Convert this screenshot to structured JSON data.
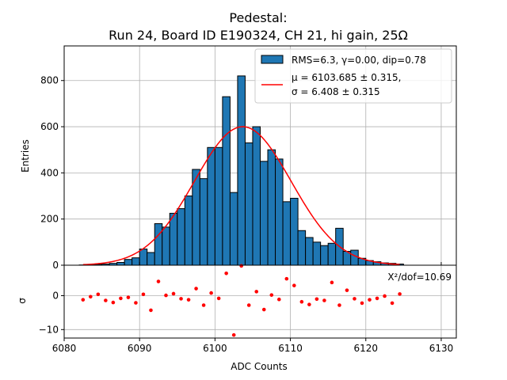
{
  "title_line1": "Pedestal:",
  "title_line2": "Run 24, Board ID E190324, CH 21, hi gain, 25Ω",
  "colors": {
    "bar": "#1f77b4",
    "fit": "#ff0000",
    "residual": "#ff0000",
    "grid": "#b0b0b0"
  },
  "chart_data": [
    {
      "type": "bar",
      "ylabel": "Entries",
      "xlim": [
        6080,
        6132
      ],
      "ylim": [
        0,
        950
      ],
      "bin_width": 1,
      "grid": true,
      "x_ticks": [
        6080,
        6090,
        6100,
        6110,
        6120,
        6130
      ],
      "y_ticks": [
        0,
        200,
        400,
        600,
        800
      ],
      "y_tick_labels": [
        "0",
        "200",
        "400",
        "600",
        "800"
      ],
      "bins_left_edge": [
        6082,
        6083,
        6084,
        6085,
        6086,
        6087,
        6088,
        6089,
        6090,
        6091,
        6092,
        6093,
        6094,
        6095,
        6096,
        6097,
        6098,
        6099,
        6100,
        6101,
        6102,
        6103,
        6104,
        6105,
        6106,
        6107,
        6108,
        6109,
        6110,
        6111,
        6112,
        6113,
        6114,
        6115,
        6116,
        6117,
        6118,
        6119,
        6120,
        6121,
        6122,
        6123,
        6124
      ],
      "values": [
        1,
        2,
        4,
        5,
        8,
        12,
        25,
        32,
        70,
        55,
        180,
        165,
        225,
        245,
        300,
        415,
        375,
        510,
        510,
        730,
        315,
        820,
        530,
        600,
        450,
        500,
        460,
        275,
        290,
        150,
        120,
        100,
        85,
        95,
        160,
        60,
        65,
        30,
        20,
        15,
        10,
        8,
        5
      ],
      "legend_placement": "top-right",
      "legend": [
        {
          "label": "RMS=6.3, γ=0.00, dip=0.78",
          "marker": "patch"
        },
        {
          "label_lines": [
            "μ = 6103.685 ± 0.315,",
            "σ = 6.408 ± 0.315"
          ],
          "marker": "line"
        }
      ],
      "fit": {
        "type": "line",
        "mu": 6103.685,
        "sigma": 6.408,
        "amplitude": 600,
        "x_range": [
          6082.5,
          6124.5
        ]
      }
    },
    {
      "type": "scatter",
      "xlabel": "ADC Counts",
      "ylabel": "σ",
      "xlim": [
        6080,
        6132
      ],
      "ylim": [
        -12.5,
        9
      ],
      "grid": true,
      "x_ticks": [
        6080,
        6090,
        6100,
        6110,
        6120,
        6130
      ],
      "x_tick_labels": [
        "6080",
        "6090",
        "6100",
        "6110",
        "6120",
        "6130"
      ],
      "y_ticks": [
        -10,
        0
      ],
      "y_tick_labels": [
        "−10",
        "0"
      ],
      "annotation": "X²/dof=10.69",
      "x": [
        6082.5,
        6083.5,
        6084.5,
        6085.5,
        6086.5,
        6087.5,
        6088.5,
        6089.5,
        6090.5,
        6091.5,
        6092.5,
        6093.5,
        6094.5,
        6095.5,
        6096.5,
        6097.5,
        6098.5,
        6099.5,
        6100.5,
        6101.5,
        6102.5,
        6103.5,
        6104.5,
        6105.5,
        6106.5,
        6107.5,
        6108.5,
        6109.5,
        6110.5,
        6111.5,
        6112.5,
        6113.5,
        6114.5,
        6115.5,
        6116.5,
        6117.5,
        6118.5,
        6119.5,
        6120.5,
        6121.5,
        6122.5,
        6123.5,
        6124.5
      ],
      "y": [
        -1.2,
        -0.3,
        0.4,
        -1.4,
        -2,
        -0.8,
        -0.5,
        -2.1,
        0.4,
        -4.3,
        4.2,
        0.1,
        0.6,
        -0.9,
        -1.2,
        2.1,
        -2.8,
        0.8,
        -0.8,
        6.6,
        -11.6,
        8.8,
        -2.8,
        1.2,
        -4.1,
        0.2,
        -1.1,
        5,
        3,
        -1.8,
        -2.6,
        -1,
        -1.4,
        3.9,
        -2.8,
        1.6,
        -0.9,
        -2.2,
        -1.2,
        -0.8,
        -0.1,
        -2.2,
        0.5
      ]
    }
  ]
}
